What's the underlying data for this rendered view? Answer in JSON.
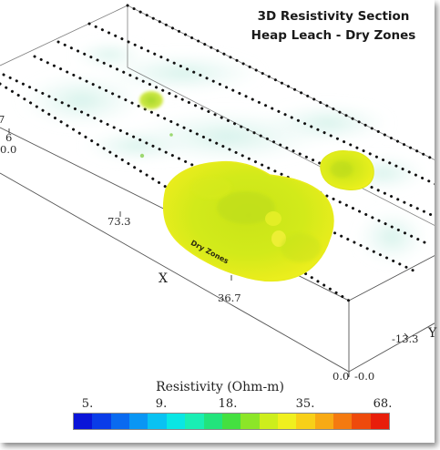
{
  "title": {
    "line1": "3D Resistivity Section",
    "line2": "Heap Leach - Dry Zones"
  },
  "axes": {
    "x_name": "X",
    "y_name": "Y",
    "x_ticks": [
      "73.3",
      "36.7",
      "0.0"
    ],
    "y_ticks": [
      "-13.3",
      "-0.0"
    ],
    "left_ticks": [
      "7",
      "6",
      "0.0"
    ]
  },
  "annotation": "Dry Zones",
  "legend": {
    "title": "Resistivity (Ohm-m)",
    "ticks": [
      "5.",
      "9.",
      "18.",
      "35.",
      "68."
    ],
    "colors": [
      "#0a14d8",
      "#0a3ce8",
      "#0a6af0",
      "#0a96f4",
      "#0ac2f2",
      "#0ae6e4",
      "#1aeeb4",
      "#22e47c",
      "#44e040",
      "#8ce628",
      "#cdee1c",
      "#f0f01e",
      "#f8d018",
      "#f8aa14",
      "#f47a10",
      "#ee4a0c",
      "#e81e0a"
    ]
  },
  "bodies": [
    {
      "label": "dry-zone-main",
      "resistivity_class": "yellow-green"
    },
    {
      "label": "dry-zone-right",
      "resistivity_class": "yellow-green"
    },
    {
      "label": "dry-zone-small",
      "resistivity_class": "green"
    }
  ]
}
